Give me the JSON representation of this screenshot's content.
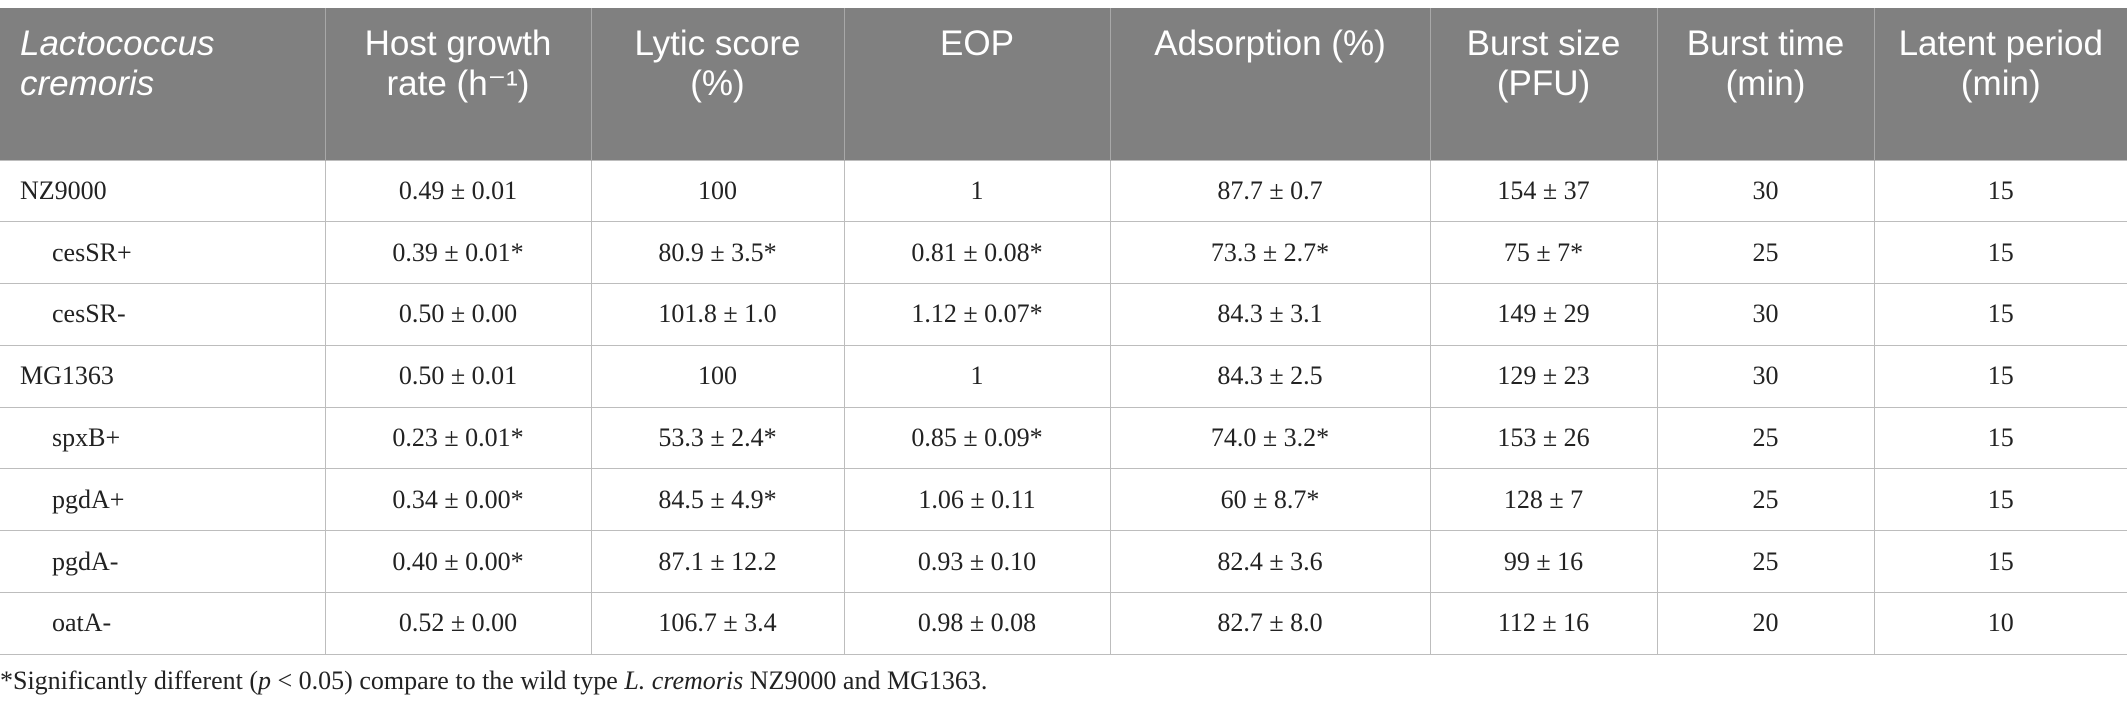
{
  "table": {
    "headers": [
      "Lactococcus cremoris",
      "Host growth rate (h⁻¹)",
      "Lytic score (%)",
      "EOP",
      "Adsorption (%)",
      "Burst size (PFU)",
      "Burst time (min)",
      "Latent period (min)"
    ],
    "rows": [
      {
        "strain": "NZ9000",
        "growth": "0.49 ± 0.01",
        "lytic": "100",
        "eop": "1",
        "adsorption": "87.7 ± 0.7",
        "burst_size": "154 ± 37",
        "burst_time": "30",
        "latent": "15"
      },
      {
        "strain": "cesSR+",
        "growth": "0.39 ± 0.01*",
        "lytic": "80.9 ± 3.5*",
        "eop": "0.81 ± 0.08*",
        "adsorption": "73.3 ± 2.7*",
        "burst_size": "75 ± 7*",
        "burst_time": "25",
        "latent": "15"
      },
      {
        "strain": "cesSR-",
        "growth": "0.50 ± 0.00",
        "lytic": "101.8 ± 1.0",
        "eop": "1.12 ± 0.07*",
        "adsorption": "84.3 ± 3.1",
        "burst_size": "149 ± 29",
        "burst_time": "30",
        "latent": "15"
      },
      {
        "strain": "MG1363",
        "growth": "0.50 ± 0.01",
        "lytic": "100",
        "eop": "1",
        "adsorption": "84.3 ± 2.5",
        "burst_size": "129 ± 23",
        "burst_time": "30",
        "latent": "15"
      },
      {
        "strain": "spxB+",
        "growth": "0.23 ± 0.01*",
        "lytic": "53.3 ± 2.4*",
        "eop": "0.85 ± 0.09*",
        "adsorption": "74.0 ± 3.2*",
        "burst_size": "153 ± 26",
        "burst_time": "25",
        "latent": "15"
      },
      {
        "strain": "pgdA+",
        "growth": "0.34 ± 0.00*",
        "lytic": "84.5 ± 4.9*",
        "eop": "1.06 ± 0.11",
        "adsorption": "60 ± 8.7*",
        "burst_size": "128 ± 7",
        "burst_time": "25",
        "latent": "15"
      },
      {
        "strain": "pgdA-",
        "growth": "0.40 ± 0.00*",
        "lytic": "87.1 ± 12.2",
        "eop": "0.93 ± 0.10",
        "adsorption": "82.4 ± 3.6",
        "burst_size": "99 ± 16",
        "burst_time": "25",
        "latent": "15"
      },
      {
        "strain": "oatA-",
        "growth": "0.52 ± 0.00",
        "lytic": "106.7 ± 3.4",
        "eop": "0.98 ± 0.08",
        "adsorption": "82.7 ± 8.0",
        "burst_size": "112 ± 16",
        "burst_time": "20",
        "latent": "10"
      }
    ]
  },
  "footnote": {
    "prefix": "*Significantly different (",
    "p": "p",
    "condition": " < 0.05) compare to the wild type ",
    "species": "L. cremoris",
    "suffix": " NZ9000 and MG1363."
  }
}
